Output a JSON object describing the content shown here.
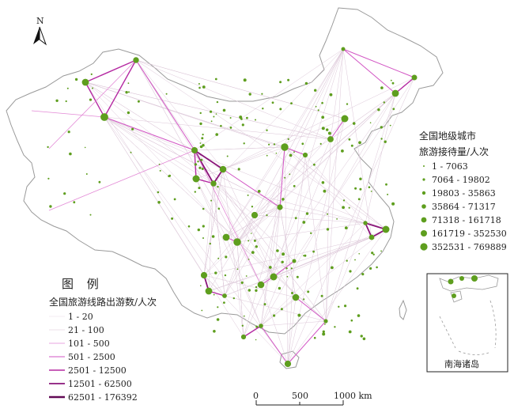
{
  "north_arrow": {
    "label": "N"
  },
  "city_legend": {
    "title_line1": "全国地级城市",
    "title_line2": "旅游接待量/人次",
    "classes": [
      {
        "label": "1 - 7063",
        "color": "#5e9e1e"
      },
      {
        "label": "7064 - 19802",
        "color": "#5e9e1e"
      },
      {
        "label": "19803 - 35863",
        "color": "#5e9e1e"
      },
      {
        "label": "35864 - 71317",
        "color": "#5e9e1e"
      },
      {
        "label": "71318 - 161718",
        "color": "#5e9e1e"
      },
      {
        "label": "161719 - 352530",
        "color": "#5e9e1e"
      },
      {
        "label": "352531 - 769889",
        "color": "#5e9e1e"
      }
    ]
  },
  "route_legend": {
    "heading": "图 例",
    "title": "全国旅游线路出游数/人次",
    "classes": [
      {
        "label": "1 - 20",
        "color": "#e8d8e6"
      },
      {
        "label": "21 - 100",
        "color": "#d9c2d6"
      },
      {
        "label": "101 - 500",
        "color": "#e389d6"
      },
      {
        "label": "501 - 2500",
        "color": "#d255c4"
      },
      {
        "label": "2501 - 12500",
        "color": "#b52aa2"
      },
      {
        "label": "12501 - 62500",
        "color": "#8a1479"
      },
      {
        "label": "62501 - 176392",
        "color": "#620a56"
      }
    ]
  },
  "scale_bar": {
    "ticks": [
      "0",
      "500",
      "1000 km"
    ]
  },
  "inset": {
    "label": "南海诸岛"
  },
  "colors": {
    "boundary": "#9a9a9a",
    "city": "#5e9e1e",
    "route": "#d255c4"
  }
}
